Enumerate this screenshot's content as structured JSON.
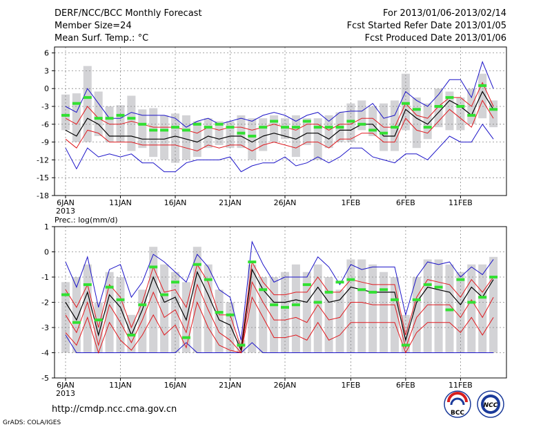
{
  "header": {
    "title": "DERF/NCC/BCC Monthly Forecast",
    "member": "Member Size=24",
    "variable": "Mean Surf. Temp.: °C",
    "period": "For 2013/01/06-2013/02/14",
    "started": "Fcst Started Refer Date 2013/01/05",
    "produced": "Fcst Produced Date 2013/01/06"
  },
  "footer": {
    "url": "http://cmdp.ncc.cma.gov.cn",
    "grads": "GrADS: COLA/IGES",
    "logo1_text": "BCC",
    "logo2_text": "NCC"
  },
  "colors": {
    "bar": "#d3d3d6",
    "mean": "#000000",
    "inner": "#e0191e",
    "outer": "#1a12c8",
    "obs": "#32e032",
    "grid": "#888888"
  },
  "chart_data": [
    {
      "type": "line",
      "title": "Mean Surf. Temp.: °C",
      "ylim": [
        -18,
        7
      ],
      "yticks": [
        6,
        3,
        0,
        -3,
        -6,
        -9,
        -12,
        -15,
        -18
      ],
      "xticks": [
        {
          "day": 0,
          "label": "6JAN"
        },
        {
          "day": 5,
          "label": "11JAN"
        },
        {
          "day": 10,
          "label": "16JAN"
        },
        {
          "day": 15,
          "label": "21JAN"
        },
        {
          "day": 20,
          "label": "26JAN"
        },
        {
          "day": 26,
          "label": "1FEB"
        },
        {
          "day": 31,
          "label": "6FEB"
        },
        {
          "day": 36,
          "label": "11FEB"
        }
      ],
      "xyear": "2013",
      "days": 40,
      "bars_top": [
        -1,
        -0.8,
        3.8,
        -0.5,
        -3,
        -2.8,
        -1.2,
        -3.5,
        -3.3,
        -4.5,
        -4.2,
        -4.5,
        -5.5,
        -5,
        -5.5,
        -5.5,
        -4.5,
        -5,
        -5,
        -4.5,
        -5,
        -4.5,
        -5,
        -5,
        -4.5,
        -4,
        -2.5,
        -2,
        -3,
        -2.5,
        -2,
        2.5,
        -1.5,
        -2.5,
        0,
        -0.5,
        -1.5,
        0,
        2.5,
        -2
      ],
      "bars_bottom": [
        -7,
        -9,
        -9,
        -8,
        -9,
        -9,
        -10.5,
        -10,
        -11.5,
        -12,
        -12.5,
        -12,
        -11.5,
        -10,
        -9.5,
        -10,
        -10,
        -12,
        -10.5,
        -9,
        -8.5,
        -11.5,
        -9.5,
        -12,
        -10,
        -9,
        -9,
        -7,
        -8,
        -10.5,
        -10.5,
        -7,
        -10,
        -8.5,
        -6.5,
        -7,
        -7,
        -6,
        -5,
        -6.5
      ],
      "max": [
        -3,
        -4,
        0,
        -2.5,
        -5,
        -5,
        -4,
        -4.5,
        -4.5,
        -4.5,
        -5,
        -6.5,
        -5.5,
        -5,
        -6,
        -5.5,
        -5,
        -5.5,
        -4.5,
        -4,
        -4.5,
        -5.5,
        -4.5,
        -4,
        -5.5,
        -4,
        -3.8,
        -3.8,
        -2.5,
        -5,
        -4.5,
        -0.5,
        -2,
        -3,
        -1,
        1.5,
        1.5,
        -1.5,
        4.5,
        0
      ],
      "p_hi": [
        -5,
        -6,
        -3,
        -5,
        -6,
        -6,
        -5.5,
        -6,
        -6.5,
        -6.5,
        -6.5,
        -7,
        -7.5,
        -6.5,
        -7,
        -6.5,
        -6.5,
        -7,
        -6.5,
        -6,
        -6.5,
        -7,
        -6,
        -6,
        -7,
        -6,
        -6,
        -5,
        -5,
        -6.5,
        -6.5,
        -2.5,
        -4.5,
        -5,
        -3,
        -1.5,
        -1.5,
        -3,
        1,
        -3
      ],
      "mean": [
        -7,
        -8,
        -5,
        -6,
        -8,
        -8,
        -8,
        -8.5,
        -8.5,
        -8.5,
        -8,
        -8.5,
        -9,
        -8,
        -8.5,
        -8,
        -8,
        -9,
        -8,
        -7.5,
        -8,
        -8.5,
        -7.5,
        -7.5,
        -8.5,
        -7,
        -7,
        -6,
        -6,
        -8,
        -8,
        -3.5,
        -5,
        -6,
        -4,
        -2,
        -3,
        -4.5,
        -0.5,
        -3.5
      ],
      "p_lo": [
        -8.5,
        -10,
        -7,
        -7.5,
        -9,
        -9,
        -9,
        -9.5,
        -9.5,
        -9.5,
        -9.5,
        -10,
        -10.5,
        -9.5,
        -10,
        -9.5,
        -9.5,
        -10.5,
        -9.5,
        -9,
        -9.5,
        -10,
        -9,
        -9,
        -10,
        -8.5,
        -8.5,
        -7.5,
        -7.5,
        -9,
        -9,
        -5,
        -7,
        -7.5,
        -5.5,
        -3.5,
        -5,
        -6.5,
        -2,
        -5
      ],
      "min": [
        -10,
        -13.5,
        -10,
        -11.5,
        -11,
        -11.5,
        -11,
        -12.5,
        -12.5,
        -14,
        -14,
        -12.5,
        -12,
        -12,
        -12,
        -11.5,
        -14,
        -13,
        -12.5,
        -12.5,
        -11.5,
        -13,
        -12.5,
        -11.5,
        -12.5,
        -11.5,
        -10,
        -10,
        -11.5,
        -12,
        -12.5,
        -11,
        -11,
        -12,
        -10,
        -8,
        -9,
        -9,
        -6,
        -8.5
      ],
      "obs": [
        -4.5,
        -2.5,
        -1.5,
        -5,
        -5,
        -4.5,
        -5,
        -6,
        -7,
        -7,
        -6.5,
        -7,
        -6,
        -6.5,
        -6,
        -6.5,
        -7.5,
        -8,
        -6.5,
        -5.5,
        -6.5,
        -6.5,
        -5.5,
        -6.5,
        -6.5,
        -6.5,
        -5.5,
        -6,
        -7,
        -7.5,
        -6.5,
        -2.5,
        -3.5,
        -6.5,
        -3,
        -1.5,
        -3,
        -4.5,
        0.5,
        -3.5
      ]
    },
    {
      "type": "line",
      "title": "Prec.: log(mm/d)",
      "ylim": [
        -5,
        1
      ],
      "yticks": [
        1,
        0,
        -1,
        -2,
        -3,
        -4,
        -5
      ],
      "xticks": [
        {
          "day": 0,
          "label": "6JAN"
        },
        {
          "day": 5,
          "label": "11JAN"
        },
        {
          "day": 10,
          "label": "16JAN"
        },
        {
          "day": 15,
          "label": "21JAN"
        },
        {
          "day": 20,
          "label": "26JAN"
        },
        {
          "day": 26,
          "label": "1FEB"
        },
        {
          "day": 31,
          "label": "6FEB"
        },
        {
          "day": 36,
          "label": "11FEB"
        }
      ],
      "xyear": "2013",
      "days": 40,
      "bars_top": [
        -1.2,
        -1,
        -0.5,
        -2,
        -0.8,
        -1,
        -2.5,
        -1.5,
        0.2,
        -0.5,
        -0.8,
        -1.2,
        0.2,
        -0.5,
        -1.5,
        -2,
        -3.5,
        -0.5,
        -1,
        -1,
        -0.8,
        -0.5,
        -0.8,
        -0.5,
        -1,
        -1.5,
        -0.3,
        -0.3,
        -0.5,
        -0.8,
        -1,
        -2.5,
        -1,
        -0.3,
        -0.3,
        -0.5,
        -0.8,
        -0.5,
        -0.5,
        -0.2
      ],
      "bars_bottom": [
        -4,
        -4,
        -4,
        -4,
        -4,
        -4,
        -4,
        -4,
        -4,
        -4,
        -4,
        -4,
        -4,
        -4,
        -4,
        -4,
        -4,
        -4,
        -4,
        -4,
        -4,
        -4,
        -4,
        -4,
        -4,
        -4,
        -4,
        -4,
        -4,
        -4,
        -4,
        -4,
        -4,
        -4,
        -4,
        -4,
        -4,
        -4,
        -4,
        -4
      ],
      "max": [
        -0.4,
        -1.4,
        -0.2,
        -2.2,
        -0.7,
        -0.5,
        -1.8,
        -1.2,
        -0.1,
        -0.4,
        -0.8,
        -1.2,
        -0.1,
        -0.6,
        -1.5,
        -1.8,
        -3.5,
        0.4,
        -0.5,
        -1.2,
        -1,
        -1,
        -1,
        -0.2,
        -0.6,
        -1.3,
        -0.5,
        -0.7,
        -0.6,
        -0.6,
        -0.6,
        -2.5,
        -1,
        -0.4,
        -0.5,
        -0.4,
        -1,
        -0.6,
        -0.9,
        -0.3
      ],
      "p_hi": [
        -1.5,
        -2.2,
        -1.3,
        -3,
        -1.3,
        -1.8,
        -3,
        -2,
        -0.6,
        -1.6,
        -1.5,
        -2.2,
        -0.5,
        -1.2,
        -2.5,
        -2.5,
        -3.8,
        -0.4,
        -1.2,
        -1.7,
        -1.7,
        -1.6,
        -1.6,
        -1,
        -1.6,
        -1.6,
        -1.1,
        -1.2,
        -1.3,
        -1.3,
        -1.3,
        -3.3,
        -1.8,
        -1.1,
        -1.2,
        -1.3,
        -1.8,
        -1.1,
        -1.6,
        -1
      ],
      "mean": [
        -2,
        -2.7,
        -1.6,
        -3.3,
        -1.7,
        -2.2,
        -3.3,
        -2.3,
        -1,
        -2,
        -1.8,
        -2.7,
        -0.8,
        -1.7,
        -2.7,
        -2.9,
        -3.9,
        -0.7,
        -1.5,
        -2,
        -2,
        -1.9,
        -2,
        -1.4,
        -2,
        -1.9,
        -1.4,
        -1.5,
        -1.6,
        -1.6,
        -1.6,
        -3.5,
        -2,
        -1.4,
        -1.5,
        -1.6,
        -2.1,
        -1.4,
        -1.8,
        -1.1
      ],
      "p_lo": [
        -2.5,
        -3.2,
        -2,
        -3.7,
        -2.1,
        -2.8,
        -3.6,
        -2.7,
        -1.6,
        -2.6,
        -2.3,
        -3.2,
        -1.3,
        -2.3,
        -3.2,
        -3.5,
        -4,
        -1.2,
        -2,
        -2.7,
        -2.7,
        -2.6,
        -2.8,
        -2.1,
        -2.7,
        -2.6,
        -2,
        -2,
        -2.1,
        -2.1,
        -2.1,
        -3.8,
        -2.6,
        -2.1,
        -2.1,
        -2.1,
        -2.6,
        -1.9,
        -2.6,
        -1.8
      ],
      "p_lo2": [
        -3.2,
        -3.7,
        -2.6,
        -4,
        -2.8,
        -3.5,
        -3.9,
        -3.3,
        -2.5,
        -3.3,
        -2.9,
        -3.8,
        -2,
        -3,
        -3.7,
        -3.9,
        -4,
        -1.8,
        -2.6,
        -3.4,
        -3.4,
        -3.3,
        -3.5,
        -2.8,
        -3.5,
        -3.3,
        -2.8,
        -2.8,
        -2.8,
        -2.8,
        -2.8,
        -4,
        -3.2,
        -2.8,
        -2.8,
        -2.8,
        -3.2,
        -2.6,
        -3.3,
        -2.6
      ],
      "min": [
        -3.3,
        -4,
        -4,
        -4,
        -4,
        -4,
        -4,
        -4,
        -4,
        -4,
        -4,
        -3.6,
        -4,
        -4,
        -4,
        -4,
        -4,
        -3.6,
        -4,
        -4,
        -4,
        -4,
        -4,
        -4,
        -4,
        -4,
        -4,
        -4,
        -4,
        -4,
        -4,
        -4,
        -4,
        -4,
        -4,
        -4,
        -4,
        -4,
        -4,
        -4
      ],
      "obs": [
        -1.7,
        -2.8,
        -1.3,
        -2.7,
        -1.4,
        -1.9,
        -3.3,
        -2.1,
        -0.6,
        -1.7,
        -1.2,
        -3.4,
        -0.5,
        -1.1,
        -2.4,
        -2.5,
        -3.7,
        -0.4,
        -1.5,
        -2.1,
        -2.2,
        -2.1,
        -1.3,
        -2,
        -1.6,
        -1.2,
        -1.1,
        -1.5,
        -1.6,
        -1.5,
        -1.9,
        -3.7,
        -1.9,
        -1.3,
        -1.4,
        -2.3,
        -1.1,
        -2,
        -1.8,
        -1
      ]
    }
  ],
  "panel_labels": {
    "bottom_title": "Prec.: log(mm/d)"
  }
}
